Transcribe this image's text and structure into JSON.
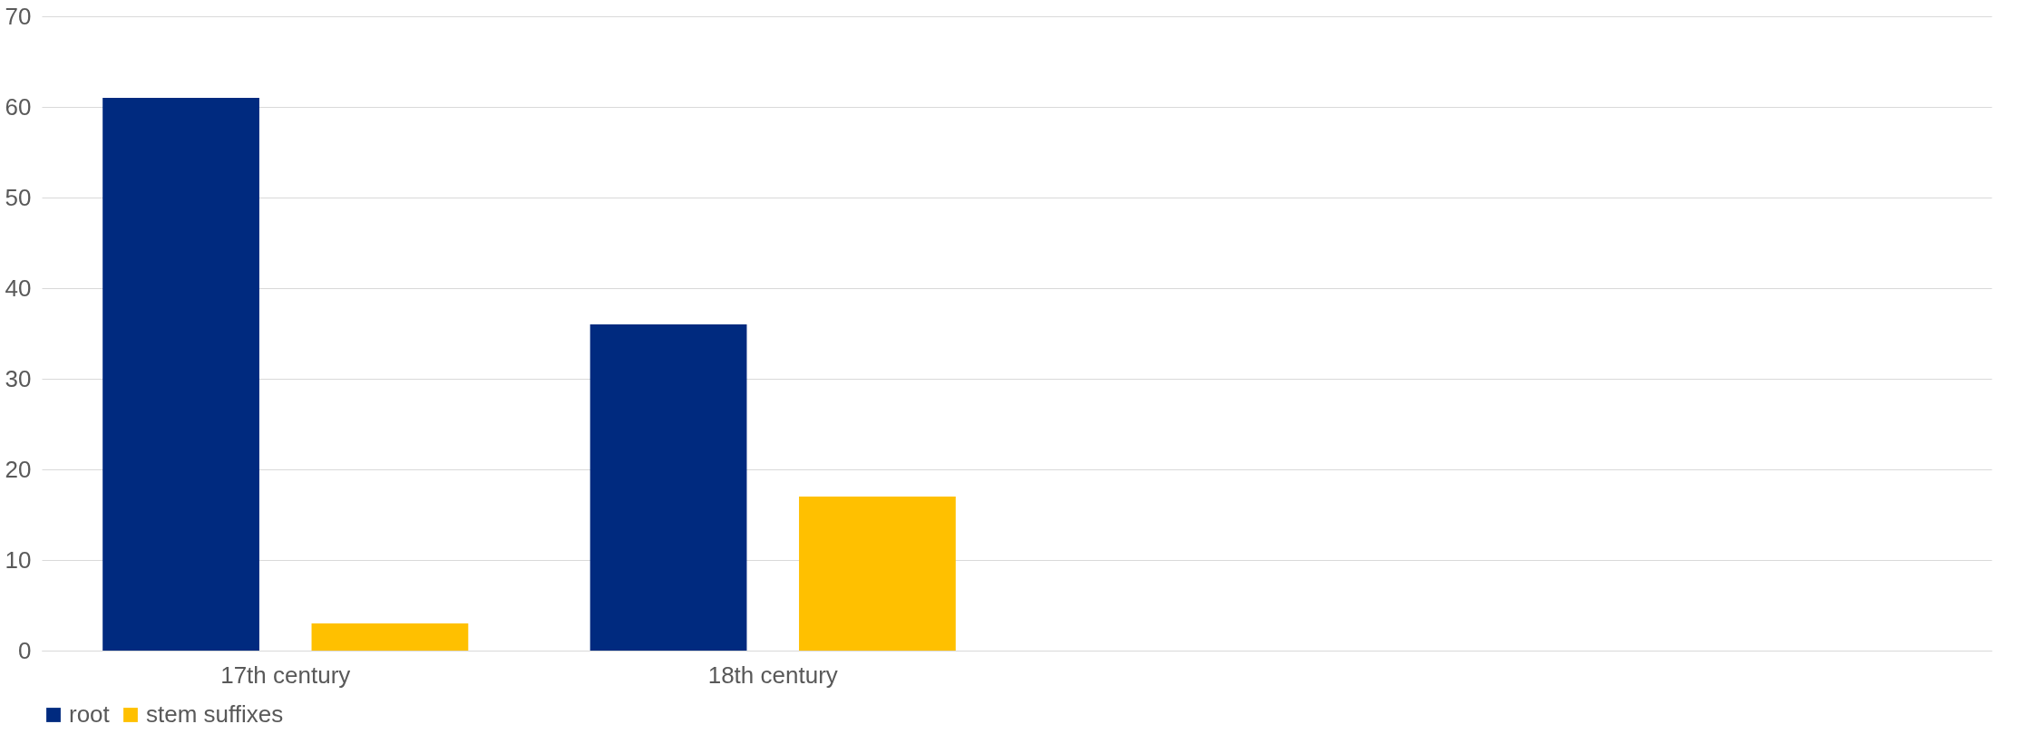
{
  "chart_data": {
    "type": "bar",
    "categories": [
      "17th century",
      "18th century",
      null,
      null
    ],
    "series": [
      {
        "name": "root",
        "color": "#002a7f",
        "values": [
          61,
          36,
          null,
          null
        ]
      },
      {
        "name": "stem suffixes",
        "color": "#ffc000",
        "values": [
          3,
          17,
          null,
          null
        ]
      }
    ],
    "ylim": [
      0,
      70
    ],
    "yticks": [
      0,
      10,
      20,
      30,
      40,
      50,
      60,
      70
    ],
    "grid": "y",
    "legend": "bottom"
  }
}
